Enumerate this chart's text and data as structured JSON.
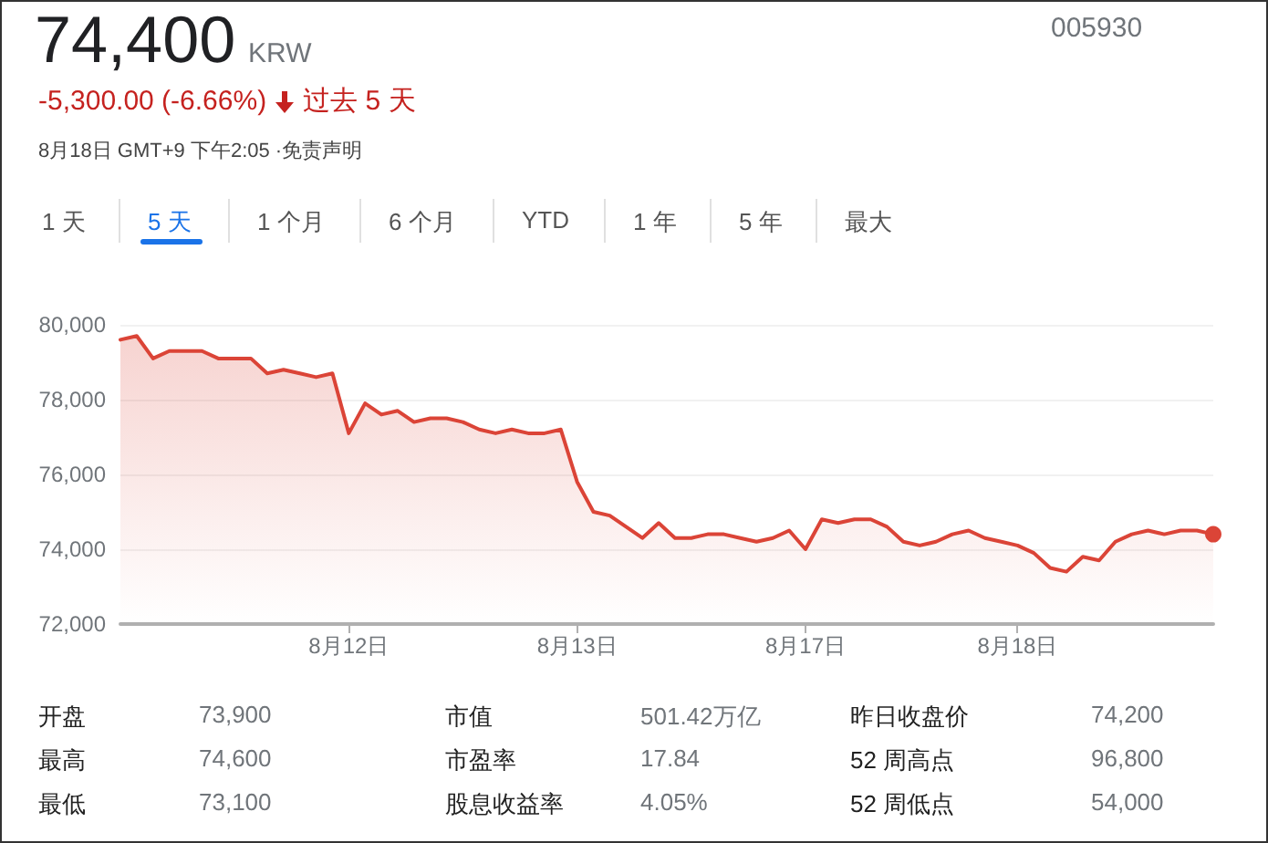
{
  "chart_data": {
    "type": "area",
    "title": "74,400",
    "annotations": [
      "KRW",
      "-5,300.00 (-6.66%)",
      "过去 5 天",
      "8月18日 GMT+9 下午2:05 ·免责声明",
      "005930",
      "1 天",
      "5 天",
      "1 个月",
      "6 个月",
      "YTD",
      "1 年",
      "5 年",
      "最大",
      "开盘",
      "73,900",
      "市值",
      "501.42万亿",
      "昨日收盘价",
      "74,200",
      "最高",
      "74,600",
      "市盈率",
      "17.84",
      "52 周高点",
      "96,800",
      "最低",
      "73,100",
      "股息收益率",
      "4.05%",
      "52 周低点",
      "54,000"
    ],
    "categories": [
      null,
      null,
      null,
      null,
      null,
      null,
      null,
      null,
      null,
      null,
      null,
      null,
      null,
      null,
      "8月12日",
      null,
      null,
      null,
      null,
      null,
      null,
      null,
      null,
      null,
      null,
      null,
      null,
      null,
      "8月13日",
      null,
      null,
      null,
      null,
      null,
      null,
      null,
      null,
      null,
      null,
      null,
      null,
      null,
      "8月17日",
      null,
      null,
      null,
      null,
      null,
      null,
      null,
      null,
      null,
      null,
      null,
      null,
      "8月18日",
      null,
      null,
      null,
      null,
      null,
      null,
      null,
      null,
      null,
      null,
      null,
      null
    ],
    "series": [
      {
        "color": "#db4437",
        "values": [
          79600,
          79700,
          79100,
          79300,
          79300,
          79300,
          79100,
          79100,
          79100,
          78700,
          78800,
          78700,
          78600,
          78700,
          77100,
          77900,
          77600,
          77700,
          77400,
          77500,
          77500,
          77400,
          77200,
          77100,
          77200,
          77100,
          77100,
          77200,
          75800,
          75000,
          74900,
          74600,
          74300,
          74700,
          74300,
          74300,
          74400,
          74400,
          74300,
          74200,
          74300,
          74500,
          74000,
          74800,
          74700,
          74800,
          74800,
          74600,
          74200,
          74100,
          74200,
          74400,
          74500,
          74300,
          74200,
          74100,
          73900,
          73500,
          73400,
          73800,
          73700,
          74200,
          74400,
          74500,
          74400,
          74500,
          74500,
          74400
        ]
      }
    ],
    "ylim": [
      72000,
      80000
    ],
    "yticks": [
      {
        "value": 72000,
        "label": "72,000"
      },
      {
        "value": 74000,
        "label": "74,000"
      },
      {
        "value": 76000,
        "label": "76,000"
      },
      {
        "value": 78000,
        "label": "78,000"
      },
      {
        "value": 80000,
        "label": "80,000"
      }
    ],
    "grid": "y",
    "marker": "none",
    "line_style": "solid"
  }
}
